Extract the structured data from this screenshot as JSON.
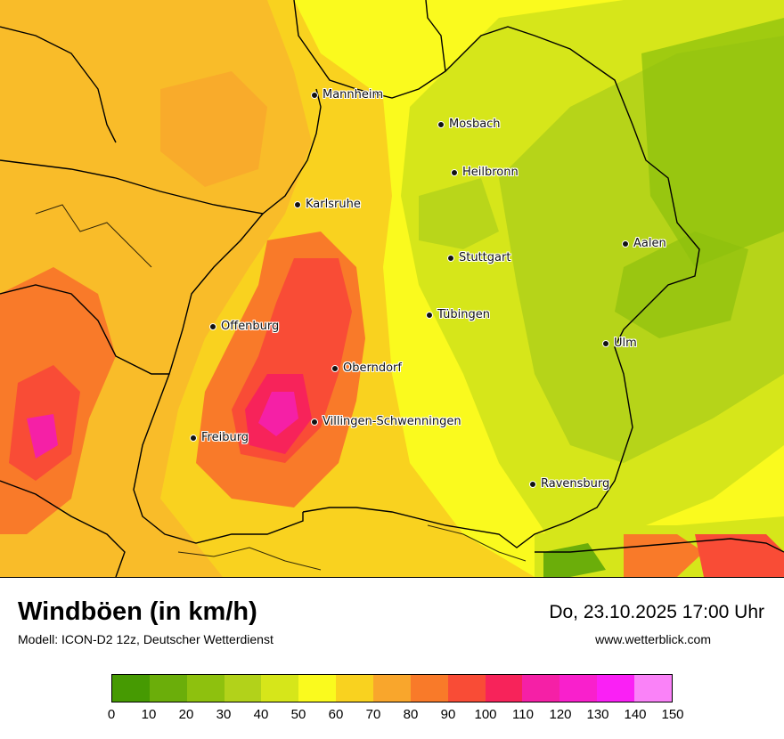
{
  "map": {
    "cities": [
      {
        "name": "Mannheim"
      },
      {
        "name": "Mosbach"
      },
      {
        "name": "Heilbronn"
      },
      {
        "name": "Karlsruhe"
      },
      {
        "name": "Aalen"
      },
      {
        "name": "Stuttgart"
      },
      {
        "name": "Tübingen"
      },
      {
        "name": "Offenburg"
      },
      {
        "name": "Ulm"
      },
      {
        "name": "Oberndorf"
      },
      {
        "name": "Villingen-Schwenningen"
      },
      {
        "name": "Freiburg"
      },
      {
        "name": "Ravensburg"
      }
    ]
  },
  "footer": {
    "title": "Windböen (in km/h)",
    "model": "Modell: ICON-D2 12z, Deutscher Wetterdienst",
    "date": "Do, 23.10.2025 17:00 Uhr",
    "website": "www.wetterblick.com"
  },
  "legend": {
    "colors": [
      "#469a02",
      "#6bae0a",
      "#8ec10e",
      "#b2d21a",
      "#d6e61a",
      "#fafa1e",
      "#f9d21f",
      "#f9a62c",
      "#f97a29",
      "#f94c36",
      "#f7235a",
      "#f520a6",
      "#f920cc",
      "#fa20f5",
      "#fa82f8"
    ],
    "ticks": [
      "0",
      "10",
      "20",
      "30",
      "40",
      "50",
      "60",
      "70",
      "80",
      "90",
      "100",
      "110",
      "120",
      "130",
      "140",
      "150"
    ]
  }
}
